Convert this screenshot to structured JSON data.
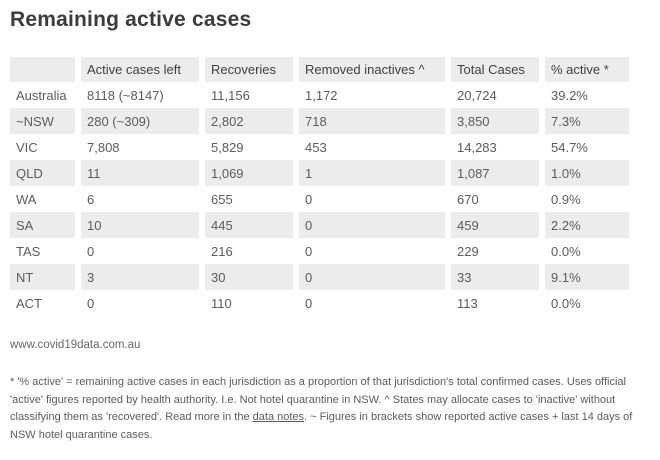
{
  "title": "Remaining active cases",
  "chart_data": {
    "type": "table",
    "title": "Remaining active cases",
    "columns": [
      "",
      "Active cases left",
      "Recoveries",
      "Removed inactives ^",
      "Total Cases",
      "% active *"
    ],
    "rows": [
      {
        "label": "Australia",
        "values": [
          "8118 (~8147)",
          "11,156",
          "1,172",
          "20,724",
          "39.2%"
        ]
      },
      {
        "label": "~NSW",
        "values": [
          "280 (~309)",
          "2,802",
          "718",
          "3,850",
          "7.3%"
        ]
      },
      {
        "label": "VIC",
        "values": [
          "7,808",
          "5,829",
          "453",
          "14,283",
          "54.7%"
        ]
      },
      {
        "label": "QLD",
        "values": [
          "11",
          "1,069",
          "1",
          "1,087",
          "1.0%"
        ]
      },
      {
        "label": "WA",
        "values": [
          "6",
          "655",
          "0",
          "670",
          "0.9%"
        ]
      },
      {
        "label": "SA",
        "values": [
          "10",
          "445",
          "0",
          "459",
          "2.2%"
        ]
      },
      {
        "label": "TAS",
        "values": [
          "0",
          "216",
          "0",
          "229",
          "0.0%"
        ]
      },
      {
        "label": "NT",
        "values": [
          "3",
          "30",
          "0",
          "33",
          "9.1%"
        ]
      },
      {
        "label": "ACT",
        "values": [
          "0",
          "110",
          "0",
          "113",
          "0.0%"
        ]
      }
    ],
    "layout": {
      "striped_rows": true,
      "stripe_color": "#ececec",
      "header_bg": "#ececec"
    }
  },
  "source": "www.covid19data.com.au",
  "footnote": {
    "before_link": "* '% active' = remaining active cases in each jurisdiction as a proportion of that jurisdiction's total confirmed cases. Uses official 'active' figures reported by health authority. I.e. Not hotel quarantine in NSW. ^ States may allocate cases to 'inactive' without classifying them as 'recovered'. Read more in the ",
    "link_text": "data notes",
    "after_link": ". ~ Figures in brackets show reported active cases + last 14 days of NSW hotel quarantine cases."
  },
  "colors": {
    "stripe": "#ececec",
    "title_text": "#3c3c3c",
    "body_text": "#5c5c5c"
  }
}
